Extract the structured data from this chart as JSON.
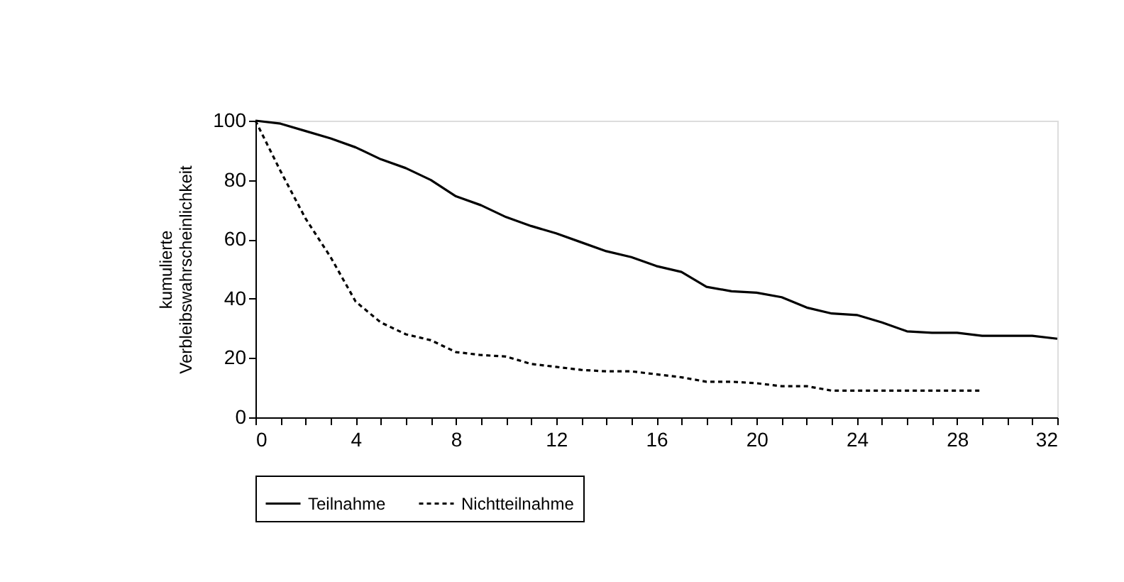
{
  "chart_data": {
    "type": "line",
    "ylabel": "kumulierte\nVerbleibswahrscheinlichkeit",
    "legend": "bottom",
    "grid": false,
    "marker": "none",
    "xlim": [
      0,
      32
    ],
    "ylim": [
      0,
      100
    ],
    "yticks": [
      0,
      20,
      40,
      60,
      80,
      100
    ],
    "xticks": [
      0,
      {
        "value": 1,
        "label": null
      },
      {
        "value": 2,
        "label": null
      },
      {
        "value": 3,
        "label": null
      },
      4,
      {
        "value": 5,
        "label": null
      },
      {
        "value": 6,
        "label": null
      },
      {
        "value": 7,
        "label": null
      },
      8,
      {
        "value": 9,
        "label": null
      },
      {
        "value": 10,
        "label": null
      },
      {
        "value": 11,
        "label": null
      },
      12,
      {
        "value": 13,
        "label": null
      },
      {
        "value": 14,
        "label": null
      },
      {
        "value": 15,
        "label": null
      },
      16,
      {
        "value": 17,
        "label": null
      },
      {
        "value": 18,
        "label": null
      },
      {
        "value": 19,
        "label": null
      },
      20,
      {
        "value": 21,
        "label": null
      },
      {
        "value": 22,
        "label": null
      },
      {
        "value": 23,
        "label": null
      },
      24,
      {
        "value": 25,
        "label": null
      },
      {
        "value": 26,
        "label": null
      },
      {
        "value": 27,
        "label": null
      },
      28,
      {
        "value": 29,
        "label": null
      },
      {
        "value": 30,
        "label": null
      },
      {
        "value": 31,
        "label": null
      },
      32
    ],
    "series": [
      {
        "name": "Teilnahme",
        "color": "#000000",
        "line_style": "solid",
        "x": [
          0,
          1,
          2,
          3,
          4,
          5,
          6,
          7,
          8,
          9,
          10,
          11,
          12,
          13,
          14,
          15,
          16,
          17,
          18,
          19,
          20,
          21,
          22,
          23,
          24,
          25,
          26,
          27,
          28,
          29,
          30,
          31,
          32
        ],
        "values": [
          100,
          99,
          96.5,
          94,
          91,
          87,
          84,
          80,
          74.5,
          71.5,
          67.5,
          64.5,
          62,
          59,
          56,
          54,
          51,
          49,
          44,
          42.5,
          42,
          40.5,
          37,
          35,
          34.5,
          32,
          29,
          28.5,
          28.5,
          27.5,
          27.5,
          27.5,
          26.5
        ]
      },
      {
        "name": "Nichtteilnahme",
        "color": "#000000",
        "line_style": "dashed",
        "x": [
          0,
          1,
          2,
          3,
          4,
          5,
          6,
          7,
          8,
          9,
          10,
          11,
          12,
          13,
          14,
          15,
          16,
          17,
          18,
          19,
          20,
          21,
          22,
          23,
          24,
          25,
          26,
          27,
          28,
          29
        ],
        "values": [
          100,
          83,
          67,
          54,
          39,
          32,
          28,
          26,
          22,
          21,
          20.5,
          18,
          17,
          16,
          15.5,
          15.5,
          14.5,
          13.5,
          12,
          12,
          11.5,
          10.5,
          10.5,
          9,
          9,
          9,
          9,
          9,
          9,
          9
        ]
      }
    ]
  }
}
